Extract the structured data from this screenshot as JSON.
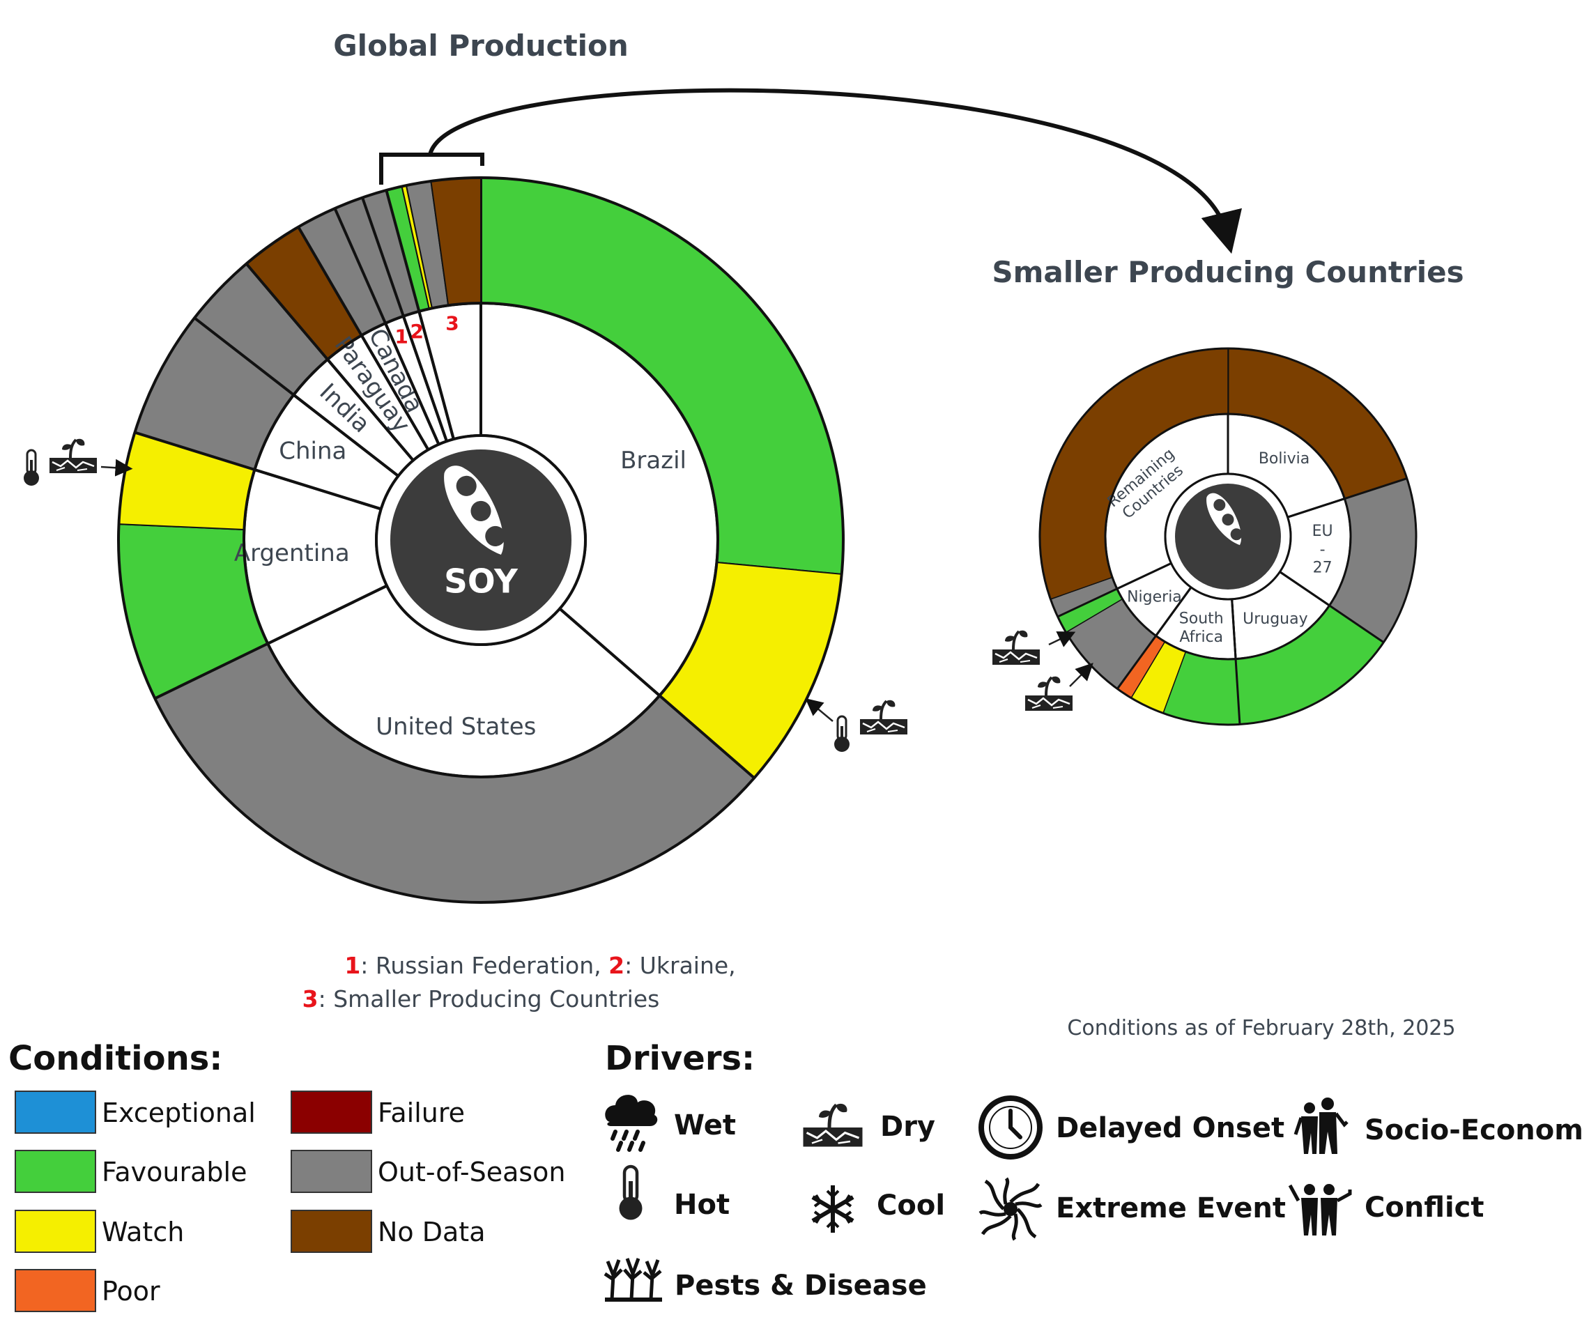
{
  "titles": {
    "global": "Global Production",
    "smaller": "Smaller Producing Countries"
  },
  "center_label": "SOY",
  "colors": {
    "Exceptional": "#1e90d6",
    "Favourable": "#44cf3c",
    "Watch": "#f5ef00",
    "Poor": "#f26522",
    "Failure": "#8b0000",
    "Out-of-Season": "#808080",
    "No Data": "#7b3f00"
  },
  "chart_data": [
    {
      "type": "pie",
      "title": "Global Production",
      "slices": [
        {
          "country": "Brazil",
          "label": "Brazil",
          "share": 36.4,
          "conditions": [
            {
              "condition": "Favourable",
              "share": 26.5
            },
            {
              "condition": "Watch",
              "share": 9.9
            }
          ]
        },
        {
          "country": "United States",
          "label": "United States",
          "share": 31.4,
          "conditions": [
            {
              "condition": "Out-of-Season",
              "share": 31.4
            }
          ]
        },
        {
          "country": "Argentina",
          "label": "Argentina",
          "share": 12.0,
          "conditions": [
            {
              "condition": "Favourable",
              "share": 7.9
            },
            {
              "condition": "Watch",
              "share": 4.1
            }
          ]
        },
        {
          "country": "China",
          "label": "China",
          "share": 5.7,
          "conditions": [
            {
              "condition": "Out-of-Season",
              "share": 5.7
            }
          ]
        },
        {
          "country": "India",
          "label": "India",
          "share": 3.3,
          "conditions": [
            {
              "condition": "Out-of-Season",
              "share": 3.3
            }
          ]
        },
        {
          "country": "Paraguay",
          "label": "Paraguay",
          "share": 2.8,
          "conditions": [
            {
              "condition": "No Data",
              "share": 2.8
            }
          ]
        },
        {
          "country": "Canada",
          "label": "Canada",
          "share": 1.8,
          "conditions": [
            {
              "condition": "Out-of-Season",
              "share": 1.8
            }
          ]
        },
        {
          "country": "Russian Federation",
          "label": "1",
          "share": 1.3,
          "conditions": [
            {
              "condition": "Out-of-Season",
              "share": 1.3
            }
          ]
        },
        {
          "country": "Ukraine",
          "label": "2",
          "share": 1.1,
          "conditions": [
            {
              "condition": "Out-of-Season",
              "share": 1.1
            }
          ]
        },
        {
          "country": "Smaller Producing Countries",
          "label": "3",
          "share": 4.2,
          "conditions": [
            {
              "condition": "Favourable",
              "share": 0.7
            },
            {
              "condition": "Watch",
              "share": 0.2
            },
            {
              "condition": "Out-of-Season",
              "share": 1.1
            },
            {
              "condition": "No Data",
              "share": 2.2
            }
          ]
        }
      ]
    },
    {
      "type": "pie",
      "title": "Smaller Producing Countries",
      "slices": [
        {
          "country": "Bolivia",
          "label": "Bolivia",
          "share": 20.0,
          "conditions": [
            {
              "condition": "No Data",
              "share": 20.0
            }
          ]
        },
        {
          "country": "EU - 27",
          "label": "EU - 27",
          "share": 14.5,
          "conditions": [
            {
              "condition": "Out-of-Season",
              "share": 14.5
            }
          ]
        },
        {
          "country": "Uruguay",
          "label": "Uruguay",
          "share": 14.5,
          "conditions": [
            {
              "condition": "Favourable",
              "share": 14.5
            }
          ]
        },
        {
          "country": "South Africa",
          "label": "South Africa",
          "share": 11.0,
          "conditions": [
            {
              "condition": "Favourable",
              "share": 6.6
            },
            {
              "condition": "Watch",
              "share": 3.0
            },
            {
              "condition": "Poor",
              "share": 1.4
            }
          ]
        },
        {
          "country": "Nigeria",
          "label": "Nigeria",
          "share": 8.0,
          "conditions": [
            {
              "condition": "Out-of-Season",
              "share": 6.5
            },
            {
              "condition": "Favourable",
              "share": 1.5
            }
          ]
        },
        {
          "country": "Remaining Countries",
          "label": "Remaining Countries",
          "share": 32.0,
          "conditions": [
            {
              "condition": "Out-of-Season",
              "share": 1.6
            },
            {
              "condition": "No Data",
              "share": 30.4
            }
          ]
        }
      ]
    }
  ],
  "footnote": {
    "line1": [
      {
        "num": "1",
        "text": ": Russian Federation, "
      },
      {
        "num": "2",
        "text": ": Ukraine,"
      }
    ],
    "line2": [
      {
        "num": "3",
        "text": ": Smaller Producing Countries"
      }
    ]
  },
  "conditions_date": "Conditions as of February 28th, 2025",
  "legend": {
    "conditions_title": "Conditions:",
    "conditions": [
      "Exceptional",
      "Favourable",
      "Watch",
      "Poor",
      "Failure",
      "Out-of-Season",
      "No Data"
    ],
    "drivers_title": "Drivers:",
    "drivers": [
      {
        "icon": "wet-icon",
        "label": "Wet"
      },
      {
        "icon": "hot-icon",
        "label": "Hot"
      },
      {
        "icon": "pests-disease-icon",
        "label": "Pests & Disease"
      },
      {
        "icon": "dry-icon",
        "label": "Dry"
      },
      {
        "icon": "cool-icon",
        "label": "Cool"
      },
      {
        "icon": "delayed-onset-icon",
        "label": "Delayed Onset"
      },
      {
        "icon": "extreme-event-icon",
        "label": "Extreme Event"
      },
      {
        "icon": "socio-economic-icon",
        "label": "Socio-Economic"
      },
      {
        "icon": "conflict-icon",
        "label": "Conflict"
      }
    ]
  }
}
